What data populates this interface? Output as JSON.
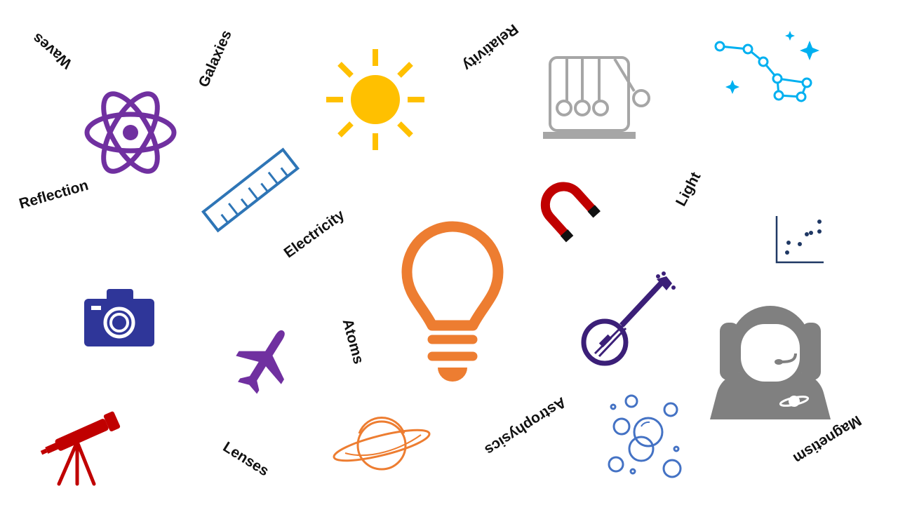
{
  "words": {
    "waves": "Waves",
    "galaxies": "Galaxies",
    "relativity": "Relativity",
    "reflection": "Reflection",
    "electricity": "Electricity",
    "light": "Light",
    "atoms": "Atoms",
    "astrophysics": "Astrophysics",
    "lenses": "Lenses",
    "magnetism": "Magnetism"
  },
  "colors": {
    "atom": "#7030a0",
    "sun": "#ffc000",
    "ruler": "#2e75b6",
    "cradle": "#a6a6a6",
    "constellation": "#00b0f0",
    "magnet": "#c00000",
    "scatter": "#1f3864",
    "lightbulb": "#ed7d31",
    "camera": "#2f3699",
    "airplane": "#7030a0",
    "banjo": "#3b1f78",
    "astronaut": "#808080",
    "telescope": "#c00000",
    "saturn": "#ed7d31",
    "bubbles": "#4472c4"
  },
  "icons": [
    "atom-icon",
    "sun-icon",
    "ruler-icon",
    "newtons-cradle-icon",
    "constellation-icon",
    "magnet-icon",
    "scatter-plot-icon",
    "lightbulb-icon",
    "camera-icon",
    "airplane-icon",
    "banjo-icon",
    "astronaut-icon",
    "telescope-icon",
    "saturn-icon",
    "bubbles-icon"
  ]
}
